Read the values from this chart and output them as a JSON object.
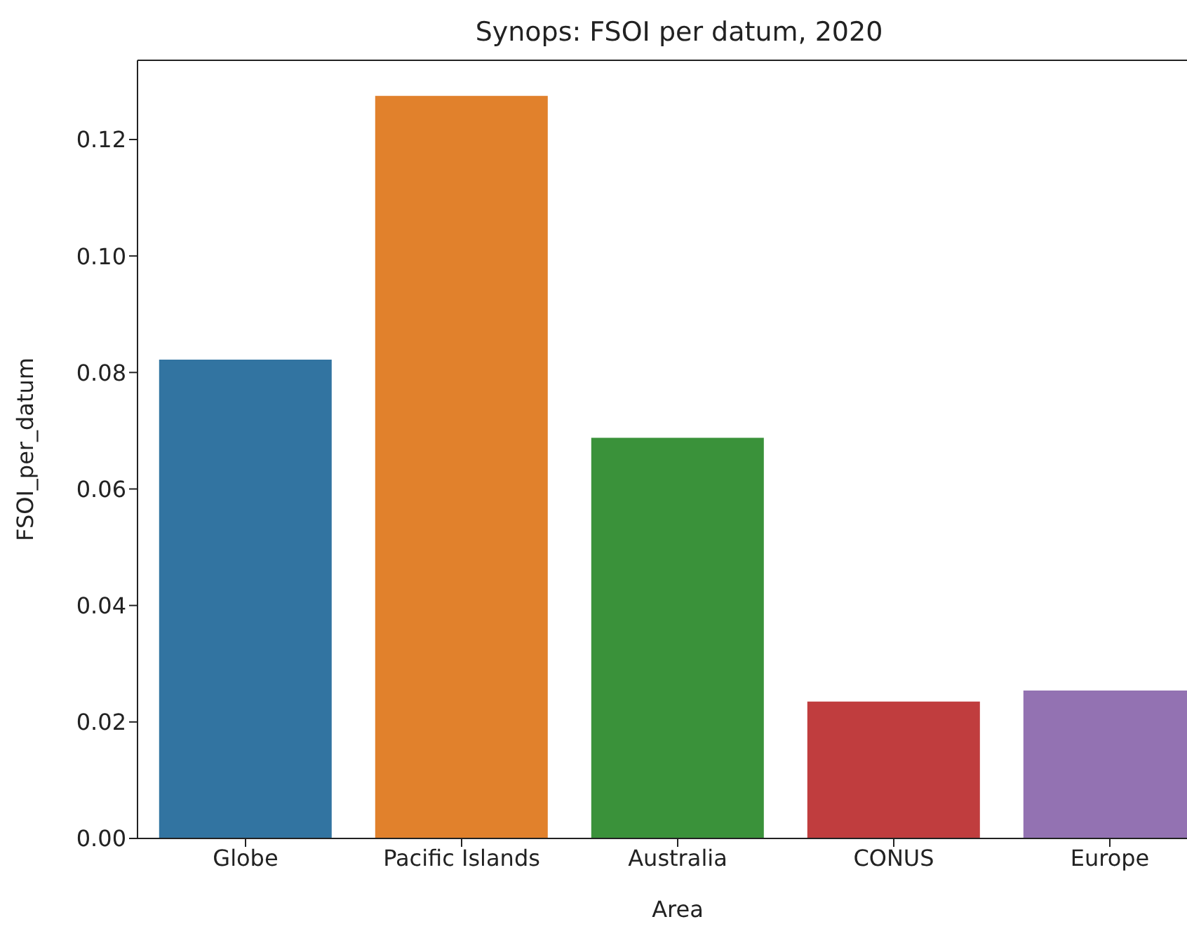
{
  "chart_data": {
    "type": "bar",
    "title": "Synops:  FSOI per datum, 2020",
    "xlabel": "Area",
    "ylabel": "FSOI_per_datum",
    "categories": [
      "Globe",
      "Pacific Islands",
      "Australia",
      "CONUS",
      "Europe"
    ],
    "values": [
      0.0822,
      0.1275,
      0.0688,
      0.0235,
      0.0254
    ],
    "colors": [
      "#3274a1",
      "#e1812c",
      "#3a923a",
      "#c03d3e",
      "#9372b2"
    ],
    "ylim": [
      0,
      0.1336
    ],
    "yticks": [
      {
        "value": 0,
        "label": "0.00"
      },
      {
        "value": 0.02,
        "label": "0.02"
      },
      {
        "value": 0.04,
        "label": "0.04"
      },
      {
        "value": 0.06,
        "label": "0.06"
      },
      {
        "value": 0.08,
        "label": "0.08"
      },
      {
        "value": 0.1,
        "label": "0.10"
      },
      {
        "value": 0.12,
        "label": "0.12"
      }
    ],
    "grid": false
  }
}
